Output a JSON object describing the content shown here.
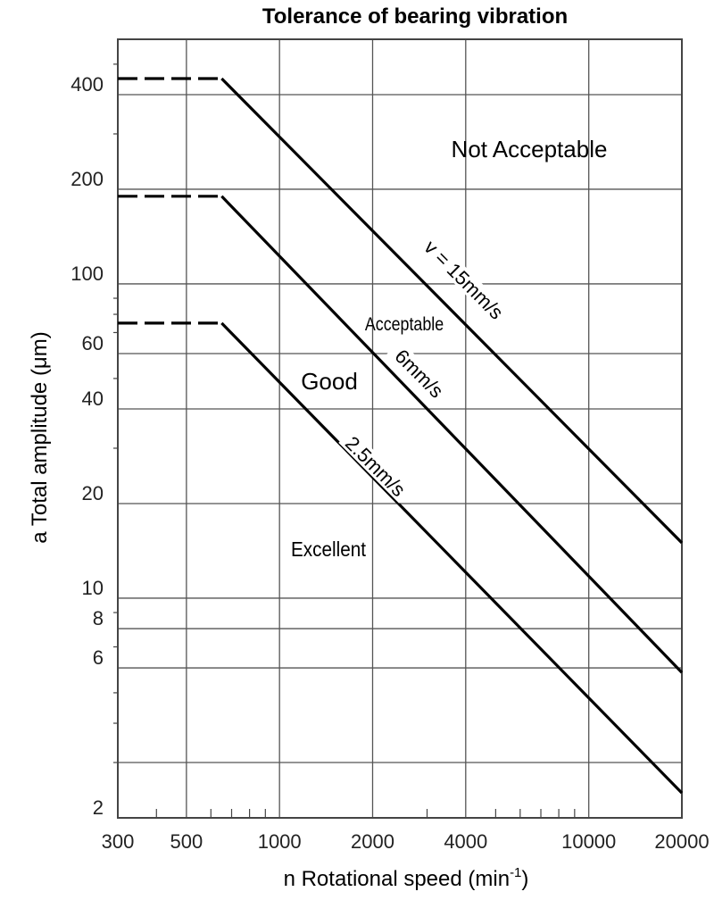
{
  "chart_data": {
    "type": "line",
    "title": "Tolerance of bearing vibration",
    "xlabel": "n Rotational speed (min",
    "xlabel_sup": "-1",
    "xlabel_end": ")",
    "ylabel": "a Total amplitude (μm)",
    "x_scale": "log",
    "y_scale": "log",
    "xlim": [
      300,
      20000
    ],
    "ylim": [
      2,
      600
    ],
    "grid": true,
    "x_ticks": [
      300,
      500,
      1000,
      2000,
      4000,
      10000,
      20000
    ],
    "x_tick_labels": [
      "300",
      "500",
      "1000",
      "2000",
      "4000",
      "10000",
      "20000"
    ],
    "y_ticks": [
      2,
      6,
      8,
      10,
      20,
      40,
      60,
      100,
      200,
      400
    ],
    "y_tick_labels": [
      "2",
      "6",
      "8",
      "10",
      "20",
      "40",
      "60",
      "100",
      "200",
      "400"
    ],
    "y_gridlines": [
      3,
      6,
      8,
      10,
      20,
      40,
      60,
      100,
      200,
      400
    ],
    "x_gridlines": [
      500,
      1000,
      2000,
      4000,
      10000
    ],
    "series": [
      {
        "name": "2.5mm/s",
        "dash_x": [
          300,
          650
        ],
        "x": [
          650,
          20000
        ],
        "y": [
          75,
          2.4
        ]
      },
      {
        "name": "6mm/s",
        "dash_x": [
          300,
          650
        ],
        "x": [
          650,
          20000
        ],
        "y": [
          190,
          5.8
        ]
      },
      {
        "name": "v = 15mm/s",
        "dash_x": [
          300,
          650
        ],
        "x": [
          650,
          20000
        ],
        "y": [
          450,
          15
        ]
      }
    ],
    "regions": [
      {
        "label": "Not Acceptable",
        "x": 4500,
        "y": 280
      },
      {
        "label": "Acceptable",
        "x": 2700,
        "y": 88
      },
      {
        "label": "Good",
        "x": 1300,
        "y": 48
      },
      {
        "label": "Excellent",
        "x": 1300,
        "y": 14.2
      }
    ]
  },
  "colors": {
    "line": "#000000",
    "grid": "#555555",
    "background": "#ffffff"
  }
}
